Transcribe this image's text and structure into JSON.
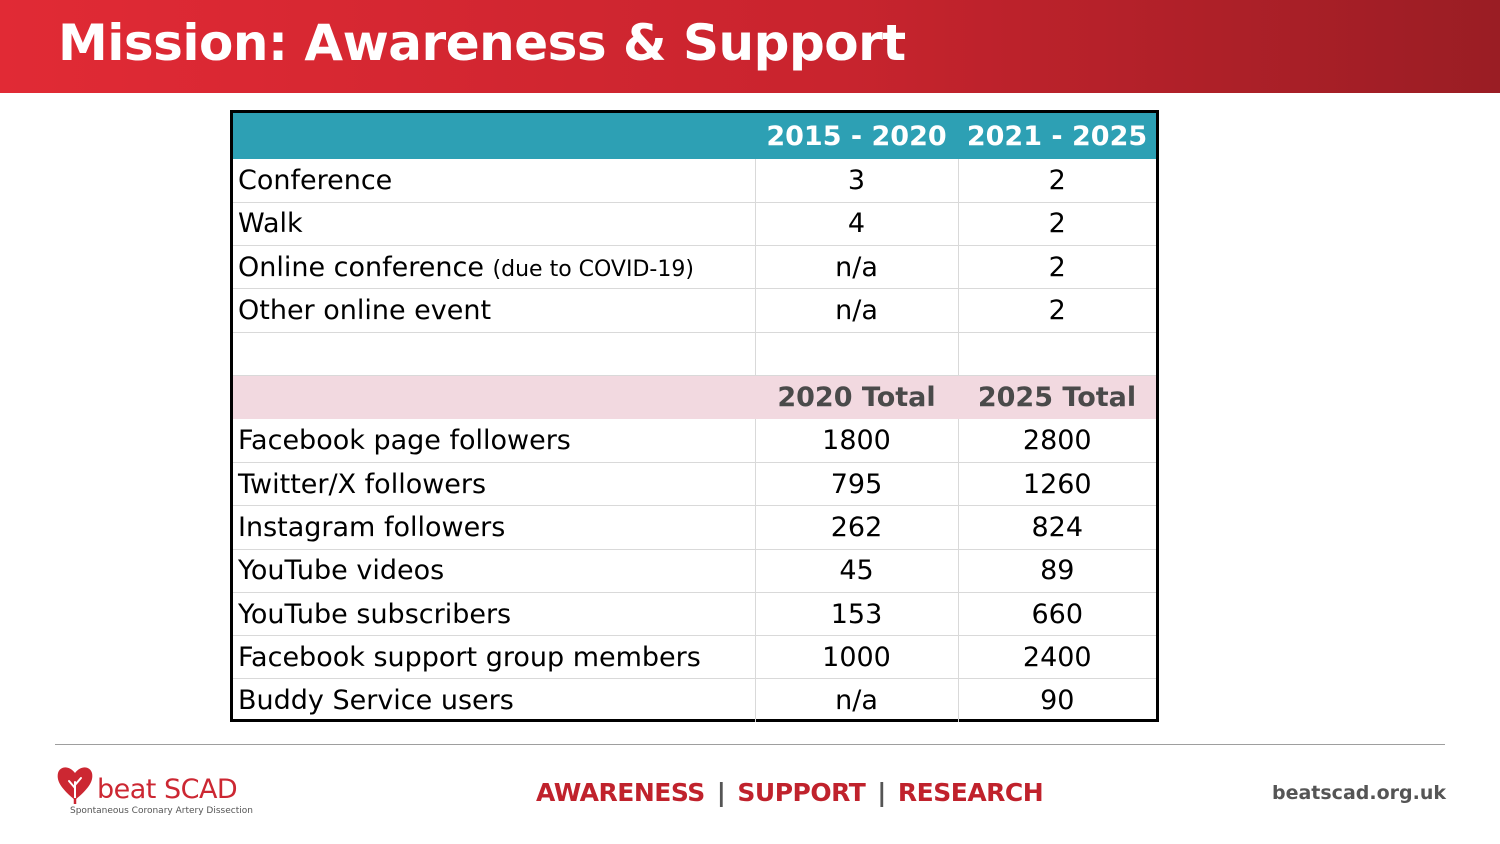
{
  "slide": {
    "title": "Mission: Awareness & Support"
  },
  "table": {
    "events_header": [
      "",
      "2015 - 2020",
      "2021 - 2025"
    ],
    "events_rows": [
      {
        "label": "Conference",
        "note": "",
        "a": "3",
        "b": "2"
      },
      {
        "label": "Walk",
        "note": "",
        "a": "4",
        "b": "2"
      },
      {
        "label": "Online conference",
        "note": "(due to COVID-19)",
        "a": "n/a",
        "b": "2"
      },
      {
        "label": "Other online event",
        "note": "",
        "a": "n/a",
        "b": "2"
      }
    ],
    "totals_header": [
      "",
      "2020 Total",
      "2025 Total"
    ],
    "totals_rows": [
      {
        "label": "Facebook page followers",
        "a": "1800",
        "b": "2800"
      },
      {
        "label": "Twitter/X followers",
        "a": "795",
        "b": "1260"
      },
      {
        "label": "Instagram followers",
        "a": "262",
        "b": "824"
      },
      {
        "label": "YouTube videos",
        "a": "45",
        "b": "89"
      },
      {
        "label": "YouTube subscribers",
        "a": "153",
        "b": "660"
      },
      {
        "label": "Facebook support group members",
        "a": "1000",
        "b": "2400"
      },
      {
        "label": "Buddy Service users",
        "a": "n/a",
        "b": "90"
      }
    ]
  },
  "footer": {
    "logo_brand": "beat SCAD",
    "logo_tagline": "Spontaneous Coronary Artery Dissection",
    "mission": [
      "AWARENESS",
      "SUPPORT",
      "RESEARCH"
    ],
    "separator": "|",
    "website": "beatscad.org.uk"
  },
  "colors": {
    "header_red": "#e12a35",
    "teal_header": "#2da0b4",
    "pink_header": "#f2d9e0",
    "mission_red": "#c0222c"
  },
  "icons": {
    "logo": "heart-tree-icon"
  }
}
